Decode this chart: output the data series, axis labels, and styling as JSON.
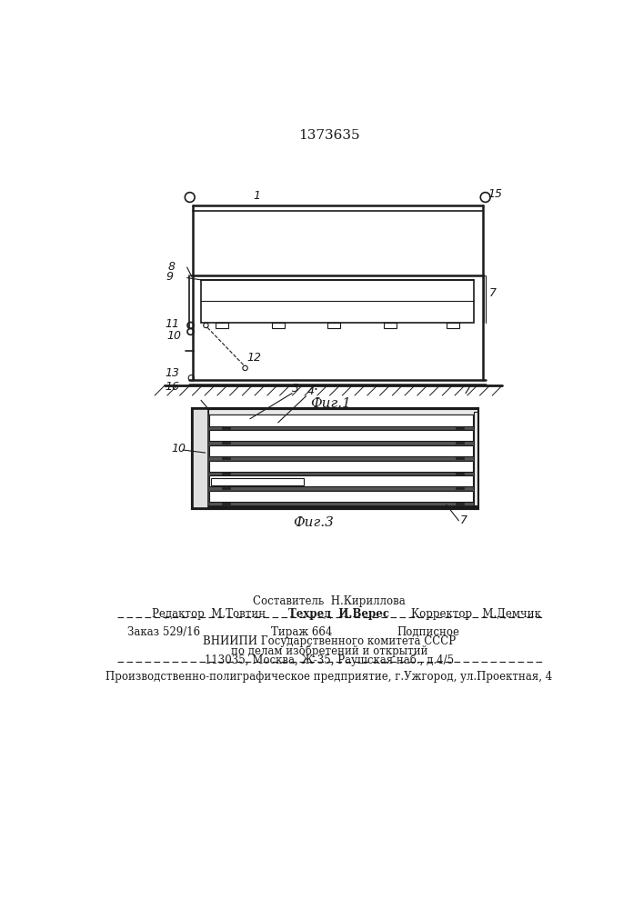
{
  "patent_number": "1373635",
  "fig1_label": "Фиг.1",
  "fig3_label": "Фиг.3",
  "footer": {
    "compiler": "Составитель  Н.Кириллова",
    "editor": "Редактор  М.Товтин",
    "techred": "Техред  И.Верес",
    "corrector": "Корректор   М.Демчик",
    "order": "Заказ 529/16",
    "circulation": "Тираж 664",
    "subscription": "Подписное",
    "line1": "ВНИИПИ Государственного комитета СССР",
    "line2": "по делам изобретений и открытий",
    "line3": "113035, Москва, Ж-35, Раушская наб., д.4/5",
    "line4": "Производственно-полиграфическое предприятие, г.Ужгород, ул.Проектная, 4"
  },
  "bg_color": "#ffffff",
  "line_color": "#1a1a1a"
}
